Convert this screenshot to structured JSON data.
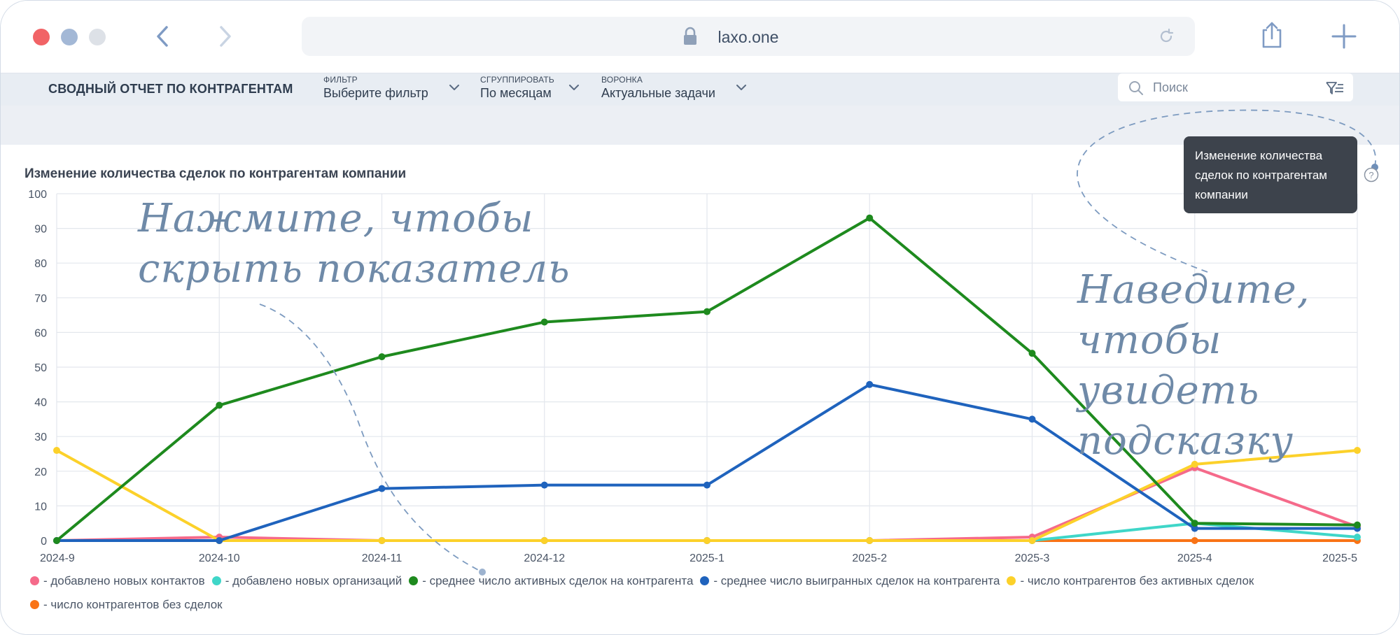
{
  "browser": {
    "url": "laxo.one",
    "traffic_colors": [
      "#f16366",
      "#a3b8d6",
      "#dde1e7"
    ]
  },
  "app": {
    "title": "СВОДНЫЙ ОТЧЕТ ПО КОНТРАГЕНТАМ",
    "filter": {
      "label": "ФИЛЬТР",
      "value": "Выберите фильтр"
    },
    "group": {
      "label": "СГРУППИРОВАТЬ",
      "value": "По месяцам"
    },
    "funnel": {
      "label": "ВОРОНКА",
      "value": "Актуальные задачи"
    },
    "search_placeholder": "Поиск"
  },
  "tooltip": {
    "text": "Изменение количества сделок по контрагентам компании"
  },
  "hints": {
    "left": [
      "Нажмите, чтобы",
      "скрыть показатель"
    ],
    "right": [
      "Наведите, чтобы",
      "увидеть подсказку"
    ]
  },
  "chart_data": {
    "type": "line",
    "title": "Изменение количества сделок по контрагентам компании",
    "x": [
      "2024-9",
      "2024-10",
      "2024-11",
      "2024-12",
      "2025-1",
      "2025-2",
      "2025-3",
      "2025-4",
      "2025-5"
    ],
    "ylim": [
      0,
      100
    ],
    "yticks": [
      0,
      10,
      20,
      30,
      40,
      50,
      60,
      70,
      80,
      90,
      100
    ],
    "grid": true,
    "legend_position": "bottom-left",
    "series": [
      {
        "name": "- добавлено новых контактов",
        "color": "#f56a8a",
        "values": [
          0,
          1,
          0,
          0,
          0,
          0,
          1,
          21,
          4
        ]
      },
      {
        "name": "- добавлено новых организаций",
        "color": "#3fd6c8",
        "values": [
          0,
          0,
          0,
          0,
          0,
          0,
          0,
          5,
          1
        ]
      },
      {
        "name": "- среднее число активных сделок на контрагента",
        "color": "#1e8a1e",
        "values": [
          0,
          39,
          53,
          63,
          66,
          93,
          54,
          5,
          4.5
        ]
      },
      {
        "name": "- среднее число выигранных сделок на контрагента",
        "color": "#1f63bd",
        "values": [
          0,
          0,
          15,
          16,
          16,
          45,
          35,
          3.5,
          3.5
        ]
      },
      {
        "name": "- число контрагентов без активных сделок",
        "color": "#fcd12a",
        "values": [
          26,
          0,
          0,
          0,
          0,
          0,
          0,
          22,
          26
        ]
      },
      {
        "name": "- число контрагентов без сделок",
        "color": "#f97316",
        "values": [
          0,
          0,
          0,
          0,
          0,
          0,
          0,
          0,
          0
        ]
      }
    ]
  }
}
